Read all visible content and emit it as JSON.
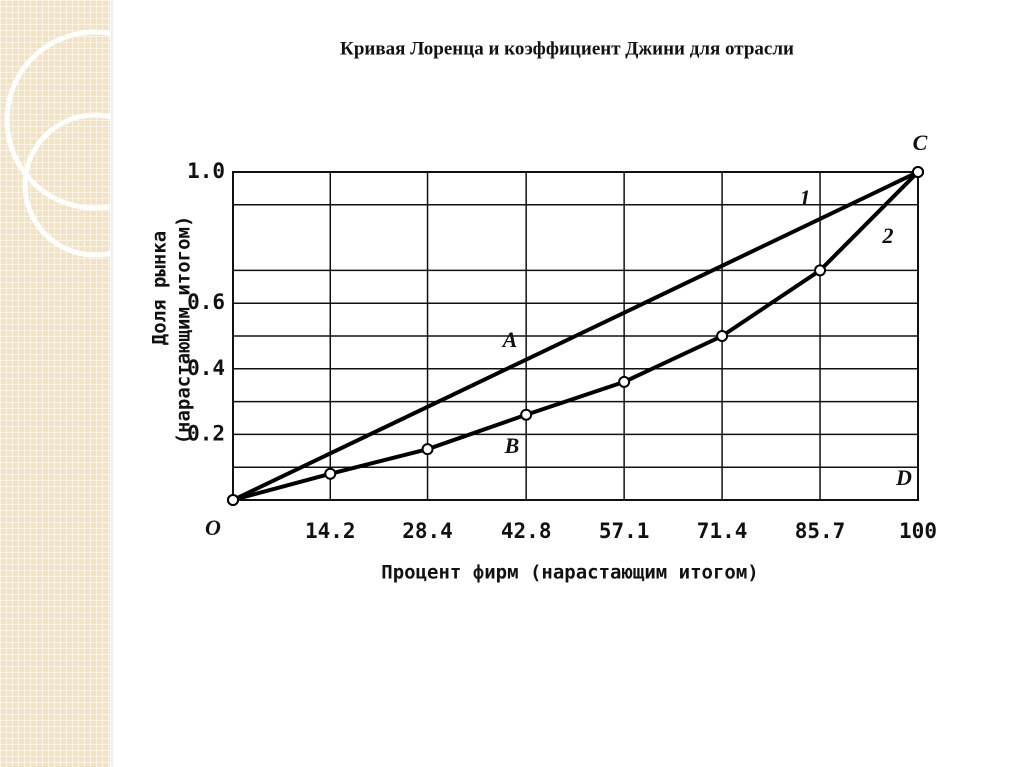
{
  "chart_data": {
    "type": "line",
    "title": "Кривая Лоренца и коэффициент Джини для отрасли",
    "ylabel": [
      "Доля рынка",
      "(нарастающим итогом)"
    ],
    "xlabel": "Процент фирм (нарастающим итогом)",
    "xlim": [
      0,
      100
    ],
    "ylim": [
      0,
      1
    ],
    "xticks": [
      14.2,
      28.4,
      42.8,
      57.1,
      71.4,
      85.7,
      100
    ],
    "yticks": [
      0.2,
      0.4,
      0.6,
      {
        "value": 1,
        "label": "1.0"
      }
    ],
    "yminorticks": [
      0.1,
      0.3,
      0.5,
      0.7,
      0.9
    ],
    "grid": true,
    "annotations": [
      "O",
      "A",
      "B",
      "C",
      "D"
    ],
    "series": [
      {
        "name": "1",
        "color": "#000000",
        "x": [
          0,
          100
        ],
        "values": [
          0,
          1
        ]
      },
      {
        "name": "2",
        "color": "#000000",
        "x": [
          0,
          14.2,
          28.4,
          42.8,
          57.1,
          71.4,
          85.7,
          100
        ],
        "values": [
          0,
          0.08,
          0.155,
          0.26,
          0.36,
          0.5,
          0.7,
          1
        ]
      }
    ]
  }
}
